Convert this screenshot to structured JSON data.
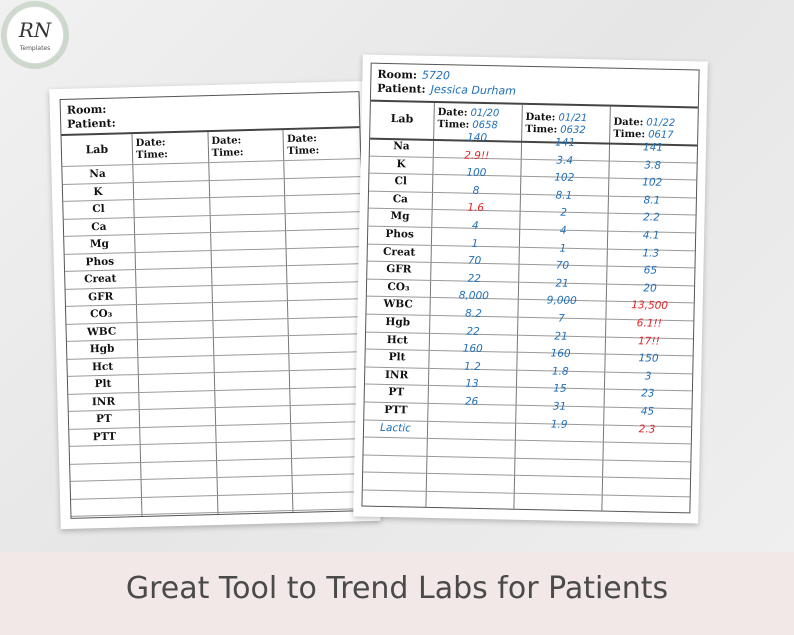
{
  "brand": {
    "logo_text": "RN",
    "logo_subtext": "Templates"
  },
  "blank_sheet": {
    "room_label": "Room:",
    "patient_label": "Patient:",
    "lab_header": "Lab",
    "date_label": "Date:",
    "time_label": "Time:",
    "labs": [
      "Na",
      "K",
      "Cl",
      "Ca",
      "Mg",
      "Phos",
      "Creat",
      "GFR",
      "CO₃",
      "WBC",
      "Hgb",
      "Hct",
      "Plt",
      "INR",
      "PT",
      "PTT"
    ]
  },
  "filled_sheet": {
    "room_label": "Room:",
    "room_value": "5720",
    "patient_label": "Patient:",
    "patient_value": "Jessica Durham",
    "lab_header": "Lab",
    "date_label": "Date:",
    "time_label": "Time:",
    "columns": [
      {
        "date": "01/20",
        "time": "0658"
      },
      {
        "date": "01/21",
        "time": "0632"
      },
      {
        "date": "01/22",
        "time": "0617"
      }
    ],
    "labs": [
      "Na",
      "K",
      "Cl",
      "Ca",
      "Mg",
      "Phos",
      "Creat",
      "GFR",
      "CO₃",
      "WBC",
      "Hgb",
      "Hct",
      "Plt",
      "INR",
      "PT",
      "PTT",
      "Lactic"
    ],
    "values": [
      [
        "140",
        "141",
        "141"
      ],
      [
        "2.9!!",
        "3.4",
        "3.8"
      ],
      [
        "100",
        "102",
        "102"
      ],
      [
        "8",
        "8.1",
        "8.1"
      ],
      [
        "1.6",
        "2",
        "2.2"
      ],
      [
        "4",
        "4",
        "4.1"
      ],
      [
        "1",
        "1",
        "1.3"
      ],
      [
        "70",
        "70",
        "65"
      ],
      [
        "22",
        "21",
        "20"
      ],
      [
        "8,000",
        "9,000",
        "13,500"
      ],
      [
        "8.2",
        "7",
        "6.1!!"
      ],
      [
        "22",
        "21",
        "17!!"
      ],
      [
        "160",
        "160",
        "150"
      ],
      [
        "1.2",
        "1.8",
        "3"
      ],
      [
        "13",
        "15",
        "23"
      ],
      [
        "26",
        "31",
        "45"
      ],
      [
        "",
        "1.9",
        "2.3"
      ]
    ],
    "flagged": [
      [
        false,
        false,
        false
      ],
      [
        true,
        false,
        false
      ],
      [
        false,
        false,
        false
      ],
      [
        false,
        false,
        false
      ],
      [
        true,
        false,
        false
      ],
      [
        false,
        false,
        false
      ],
      [
        false,
        false,
        false
      ],
      [
        false,
        false,
        false
      ],
      [
        false,
        false,
        false
      ],
      [
        false,
        false,
        true
      ],
      [
        false,
        false,
        true
      ],
      [
        false,
        false,
        true
      ],
      [
        false,
        false,
        false
      ],
      [
        false,
        false,
        false
      ],
      [
        false,
        false,
        false
      ],
      [
        false,
        false,
        false
      ],
      [
        false,
        false,
        true
      ]
    ]
  },
  "banner": {
    "title": "Great Tool to Trend Labs for Patients"
  },
  "colors": {
    "ink_blue": "#1f6fb8",
    "ink_red": "#e0262a",
    "banner_bg": "#f2e8e7"
  }
}
